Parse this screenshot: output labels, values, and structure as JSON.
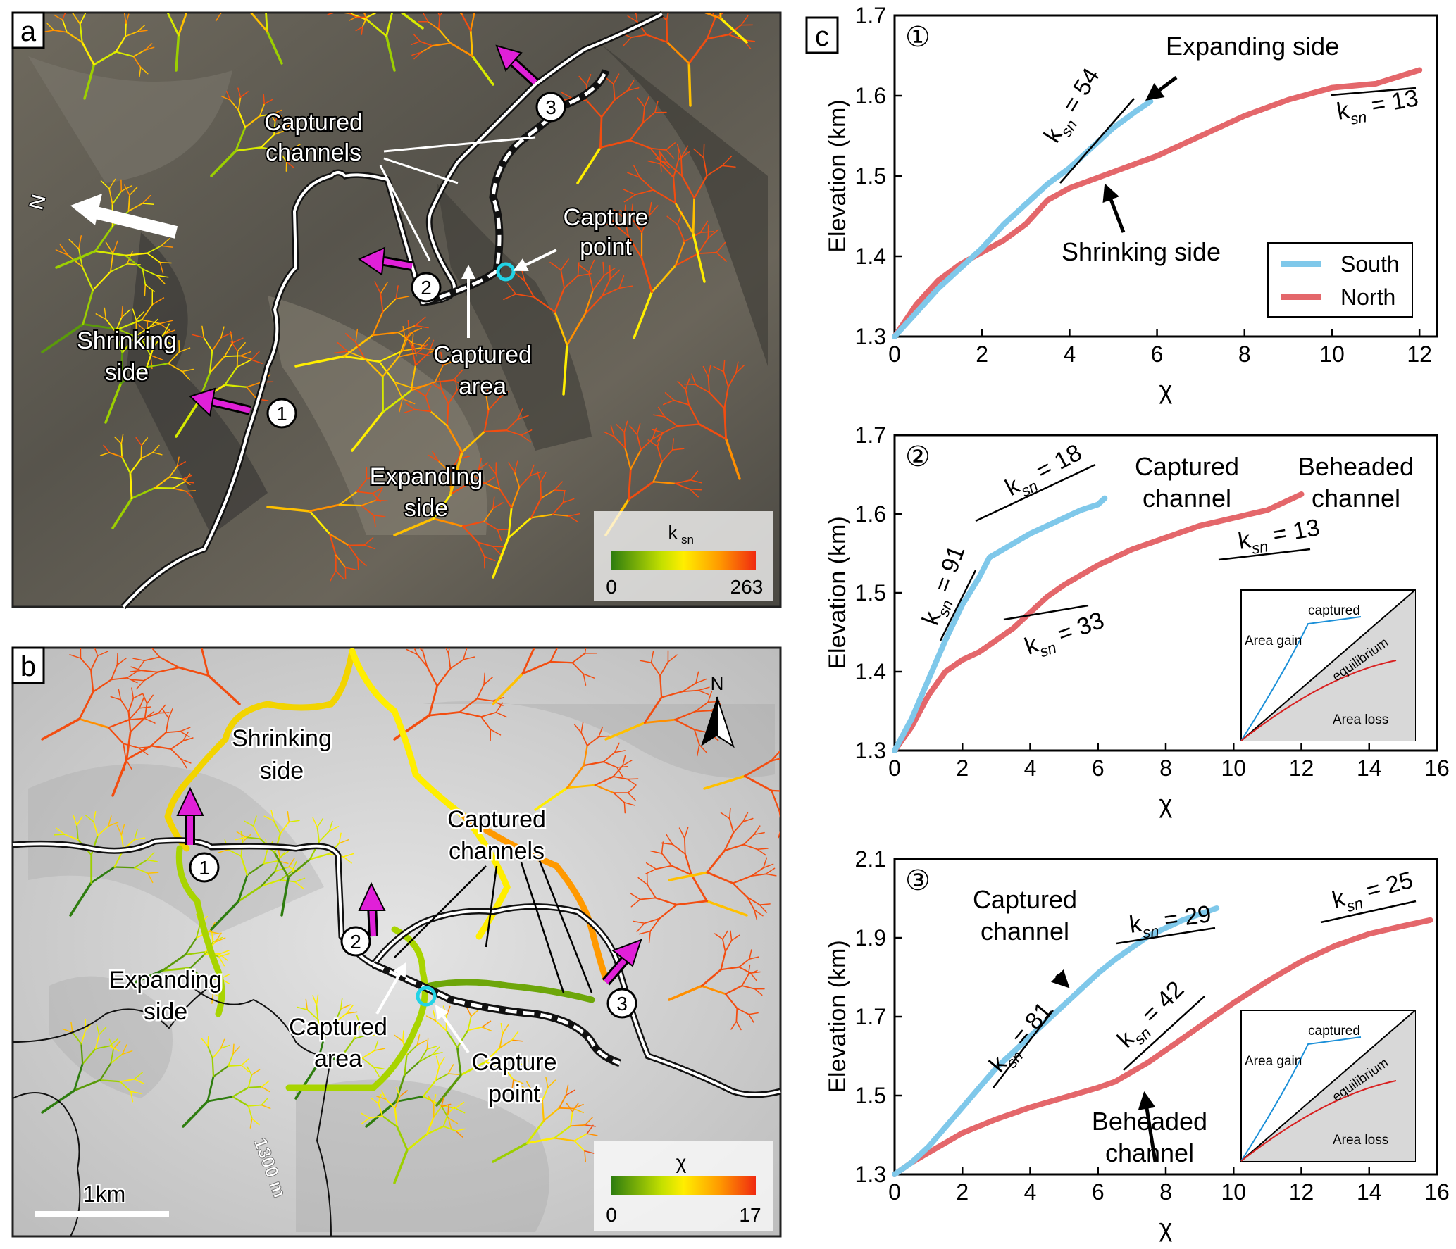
{
  "panel_a": {
    "letter": "a",
    "north_label": "N",
    "labels": {
      "captured_channels_1": "Captured",
      "captured_channels_2": "channels",
      "capture_point_1": "Capture",
      "capture_point_2": "point",
      "captured_area_1": "Captured",
      "captured_area_2": "area",
      "shrinking_1": "Shrinking",
      "shrinking_2": "side",
      "expanding_1": "Expanding",
      "expanding_2": "side"
    },
    "markers": [
      "1",
      "2",
      "3"
    ],
    "legend": {
      "title": "k",
      "title_sub": "sn",
      "min": "0",
      "max": "263",
      "colors": [
        "#2e7d0f",
        "#c4e000",
        "#ffee00",
        "#ff9900",
        "#f02a10"
      ]
    }
  },
  "panel_b": {
    "letter": "b",
    "north_label": "N",
    "labels": {
      "shrinking_1": "Shrinking",
      "shrinking_2": "side",
      "captured_channels_1": "Captured",
      "captured_channels_2": "channels",
      "expanding_1": "Expanding",
      "expanding_2": "side",
      "captured_area_1": "Captured",
      "captured_area_2": "area",
      "capture_point_1": "Capture",
      "capture_point_2": "point",
      "contour": "1300 m"
    },
    "markers": [
      "1",
      "2",
      "3"
    ],
    "scale_bar": "1km",
    "legend": {
      "title": "χ",
      "min": "0",
      "max": "17",
      "colors": [
        "#2e7d0f",
        "#c4e000",
        "#ffee00",
        "#ff9900",
        "#f02a10"
      ]
    }
  },
  "panel_c": {
    "letter": "c"
  },
  "colors": {
    "south": "#7fc8ea",
    "north": "#e4676b",
    "arrow": "#e020d8",
    "cyan_marker": "#22d3e6"
  },
  "chart_data": [
    {
      "type": "line",
      "marker": "①",
      "xlabel": "χ",
      "ylabel": "Elevation (km)",
      "xlim": [
        0,
        12.4
      ],
      "ylim": [
        1.3,
        1.7
      ],
      "xticks": [
        0,
        2,
        4,
        6,
        8,
        10,
        12
      ],
      "yticks": [
        1.3,
        1.4,
        1.5,
        1.6,
        1.7
      ],
      "legend": {
        "placement": "bottom-right",
        "entries": [
          "South",
          "North"
        ]
      },
      "series": [
        {
          "name": "South",
          "color": "#7fc8ea",
          "points": [
            [
              0,
              1.3
            ],
            [
              0.5,
              1.33
            ],
            [
              1,
              1.36
            ],
            [
              1.5,
              1.385
            ],
            [
              2,
              1.41
            ],
            [
              2.5,
              1.44
            ],
            [
              3,
              1.465
            ],
            [
              3.5,
              1.49
            ],
            [
              4,
              1.51
            ],
            [
              4.5,
              1.535
            ],
            [
              5,
              1.56
            ],
            [
              5.5,
              1.58
            ],
            [
              5.85,
              1.593
            ]
          ]
        },
        {
          "name": "North",
          "color": "#e4676b",
          "points": [
            [
              0,
              1.3
            ],
            [
              0.5,
              1.34
            ],
            [
              1,
              1.37
            ],
            [
              1.5,
              1.39
            ],
            [
              2,
              1.405
            ],
            [
              2.5,
              1.42
            ],
            [
              3,
              1.44
            ],
            [
              3.5,
              1.47
            ],
            [
              4,
              1.485
            ],
            [
              4.5,
              1.495
            ],
            [
              5,
              1.505
            ],
            [
              5.5,
              1.515
            ],
            [
              6,
              1.525
            ],
            [
              7,
              1.55
            ],
            [
              8,
              1.575
            ],
            [
              9,
              1.595
            ],
            [
              10,
              1.61
            ],
            [
              11,
              1.615
            ],
            [
              12,
              1.632
            ]
          ]
        }
      ],
      "annotations": [
        {
          "kind": "ksn",
          "value": "54",
          "text_prefix": "k",
          "sub": "sn",
          "text_suffix": " = 54"
        },
        {
          "kind": "ksn",
          "value": "13",
          "text_prefix": "k",
          "sub": "sn",
          "text_suffix": " = 13"
        },
        {
          "kind": "label",
          "text": "Expanding side"
        },
        {
          "kind": "label",
          "text": "Shrinking side"
        }
      ]
    },
    {
      "type": "line",
      "marker": "②",
      "xlabel": "χ",
      "ylabel": "Elevation (km)",
      "xlim": [
        0,
        16
      ],
      "ylim": [
        1.3,
        1.7
      ],
      "xticks": [
        0,
        2,
        4,
        6,
        8,
        10,
        12,
        14,
        16
      ],
      "yticks": [
        1.3,
        1.4,
        1.5,
        1.6,
        1.7
      ],
      "series": [
        {
          "color": "#7fc8ea",
          "points": [
            [
              0,
              1.3
            ],
            [
              0.5,
              1.34
            ],
            [
              1,
              1.39
            ],
            [
              1.5,
              1.44
            ],
            [
              2,
              1.485
            ],
            [
              2.5,
              1.52
            ],
            [
              2.8,
              1.545
            ],
            [
              3.2,
              1.555
            ],
            [
              4,
              1.575
            ],
            [
              5,
              1.595
            ],
            [
              5.5,
              1.605
            ],
            [
              6,
              1.612
            ],
            [
              6.2,
              1.62
            ]
          ]
        },
        {
          "color": "#e4676b",
          "points": [
            [
              0,
              1.3
            ],
            [
              0.5,
              1.33
            ],
            [
              1,
              1.37
            ],
            [
              1.5,
              1.4
            ],
            [
              2,
              1.415
            ],
            [
              2.5,
              1.425
            ],
            [
              3,
              1.44
            ],
            [
              3.5,
              1.455
            ],
            [
              4,
              1.475
            ],
            [
              4.5,
              1.495
            ],
            [
              5,
              1.51
            ],
            [
              6,
              1.535
            ],
            [
              7,
              1.555
            ],
            [
              8,
              1.57
            ],
            [
              9,
              1.585
            ],
            [
              10,
              1.595
            ],
            [
              11,
              1.605
            ],
            [
              12,
              1.625
            ]
          ]
        }
      ],
      "annotations": [
        {
          "kind": "ksn",
          "value": "18",
          "text_prefix": "k",
          "sub": "sn",
          "text_suffix": " = 18"
        },
        {
          "kind": "ksn",
          "value": "91",
          "text_prefix": "k",
          "sub": "sn",
          "text_suffix": " = 91"
        },
        {
          "kind": "ksn",
          "value": "33",
          "text_prefix": "k",
          "sub": "sn",
          "text_suffix": " = 33"
        },
        {
          "kind": "ksn",
          "value": "13",
          "text_prefix": "k",
          "sub": "sn",
          "text_suffix": " = 13"
        },
        {
          "kind": "label",
          "text": "Captured channel"
        },
        {
          "kind": "label",
          "text": "Beheaded channel"
        }
      ],
      "inset": {
        "captured": "captured",
        "area_gain": "Area gain",
        "equilibrium": "equilibrium",
        "area_loss": "Area loss"
      }
    },
    {
      "type": "line",
      "marker": "③",
      "xlabel": "χ",
      "ylabel": "Elevation (km)",
      "xlim": [
        0,
        16
      ],
      "ylim": [
        1.3,
        2.1
      ],
      "xticks": [
        0,
        2,
        4,
        6,
        8,
        10,
        12,
        14,
        16
      ],
      "yticks": [
        1.3,
        1.5,
        1.7,
        1.9,
        2.1
      ],
      "series": [
        {
          "color": "#7fc8ea",
          "points": [
            [
              0,
              1.3
            ],
            [
              0.5,
              1.33
            ],
            [
              1,
              1.37
            ],
            [
              1.5,
              1.42
            ],
            [
              2,
              1.47
            ],
            [
              2.5,
              1.52
            ],
            [
              3,
              1.57
            ],
            [
              3.5,
              1.61
            ],
            [
              4,
              1.65
            ],
            [
              4.5,
              1.69
            ],
            [
              5,
              1.73
            ],
            [
              5.5,
              1.77
            ],
            [
              6,
              1.81
            ],
            [
              6.5,
              1.845
            ],
            [
              7,
              1.875
            ],
            [
              7.5,
              1.905
            ],
            [
              8,
              1.925
            ],
            [
              8.5,
              1.945
            ],
            [
              9,
              1.96
            ],
            [
              9.5,
              1.975
            ]
          ]
        },
        {
          "color": "#e4676b",
          "points": [
            [
              0,
              1.3
            ],
            [
              0.5,
              1.33
            ],
            [
              1,
              1.355
            ],
            [
              1.5,
              1.38
            ],
            [
              2,
              1.405
            ],
            [
              3,
              1.44
            ],
            [
              4,
              1.47
            ],
            [
              5,
              1.495
            ],
            [
              6,
              1.52
            ],
            [
              6.5,
              1.535
            ],
            [
              7,
              1.56
            ],
            [
              7.5,
              1.585
            ],
            [
              8,
              1.615
            ],
            [
              8.5,
              1.645
            ],
            [
              9,
              1.675
            ],
            [
              10,
              1.735
            ],
            [
              11,
              1.79
            ],
            [
              12,
              1.84
            ],
            [
              13,
              1.88
            ],
            [
              14,
              1.91
            ],
            [
              15,
              1.93
            ],
            [
              15.8,
              1.945
            ]
          ]
        }
      ],
      "annotations": [
        {
          "kind": "ksn",
          "value": "29",
          "text_prefix": "k",
          "sub": "sn",
          "text_suffix": " = 29"
        },
        {
          "kind": "ksn",
          "value": "81",
          "text_prefix": "k",
          "sub": "sn",
          "text_suffix": " = 81"
        },
        {
          "kind": "ksn",
          "value": "42",
          "text_prefix": "k",
          "sub": "sn",
          "text_suffix": " = 42"
        },
        {
          "kind": "ksn",
          "value": "25",
          "text_prefix": "k",
          "sub": "sn",
          "text_suffix": " = 25"
        },
        {
          "kind": "label",
          "text": "Captured channel"
        },
        {
          "kind": "label",
          "text": "Beheaded channel"
        }
      ],
      "inset": {
        "captured": "captured",
        "area_gain": "Area gain",
        "equilibrium": "equilibrium",
        "area_loss": "Area loss"
      }
    }
  ]
}
